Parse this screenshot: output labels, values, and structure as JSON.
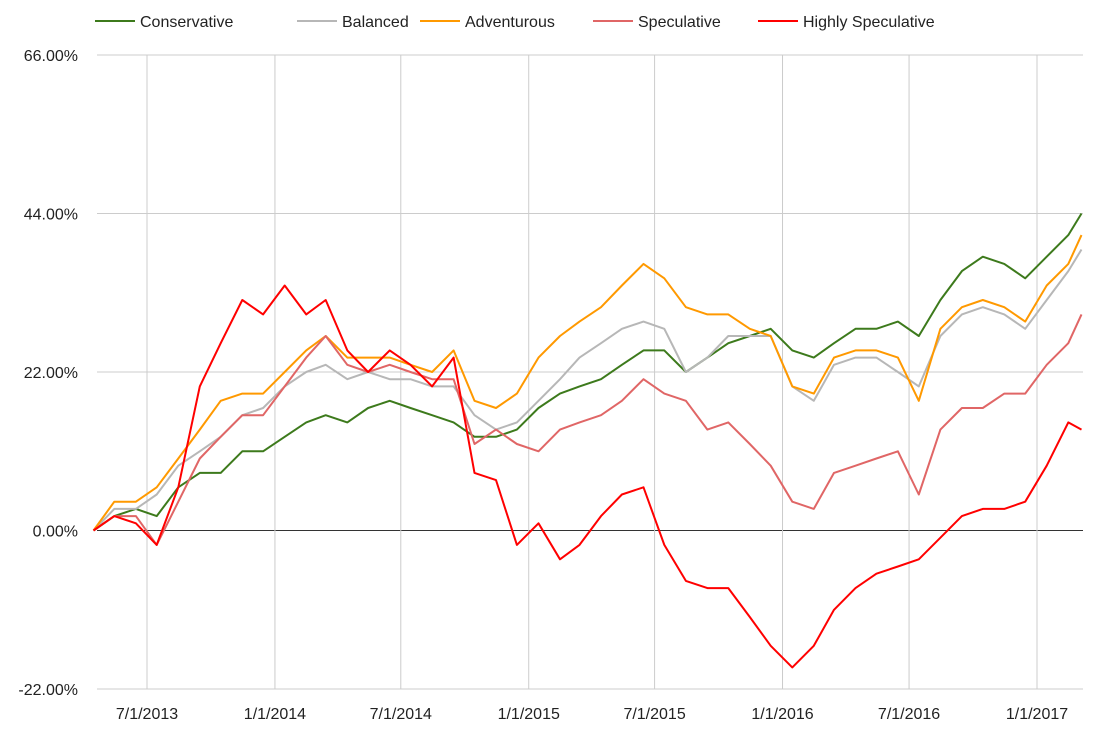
{
  "chart_data": {
    "type": "line",
    "title": "",
    "xlabel": "",
    "ylabel": "",
    "ylim": [
      -22,
      66
    ],
    "yticks": [
      "-22.00%",
      "0.00%",
      "22.00%",
      "44.00%",
      "66.00%"
    ],
    "ytick_values": [
      -22,
      0,
      22,
      44,
      66
    ],
    "xticks": [
      "7/1/2013",
      "1/1/2014",
      "7/1/2014",
      "1/1/2015",
      "7/1/2015",
      "1/1/2016",
      "7/1/2016",
      "1/1/2017"
    ],
    "xtick_dates": [
      "2013-07-01",
      "2014-01-01",
      "2014-07-01",
      "2015-01-01",
      "2015-07-01",
      "2016-01-01",
      "2016-07-01",
      "2017-01-01"
    ],
    "grid": true,
    "legend_position": "top",
    "x": [
      "2013-04-15",
      "2013-05-15",
      "2013-06-15",
      "2013-07-15",
      "2013-08-15",
      "2013-09-15",
      "2013-10-15",
      "2013-11-15",
      "2013-12-15",
      "2014-01-15",
      "2014-02-15",
      "2014-03-15",
      "2014-04-15",
      "2014-05-15",
      "2014-06-15",
      "2014-07-15",
      "2014-08-15",
      "2014-09-15",
      "2014-10-15",
      "2014-11-15",
      "2014-12-15",
      "2015-01-15",
      "2015-02-15",
      "2015-03-15",
      "2015-04-15",
      "2015-05-15",
      "2015-06-15",
      "2015-07-15",
      "2015-08-15",
      "2015-09-15",
      "2015-10-15",
      "2015-11-15",
      "2015-12-15",
      "2016-01-15",
      "2016-02-15",
      "2016-03-15",
      "2016-04-15",
      "2016-05-15",
      "2016-06-15",
      "2016-07-15",
      "2016-08-15",
      "2016-09-15",
      "2016-10-15",
      "2016-11-15",
      "2016-12-15",
      "2017-01-15",
      "2017-02-15",
      "2017-03-06"
    ],
    "series": [
      {
        "name": "Conservative",
        "color": "#3d7a1c",
        "values": [
          0,
          2,
          3,
          2,
          6,
          8,
          8,
          11,
          11,
          13,
          15,
          16,
          15,
          17,
          18,
          17,
          16,
          15,
          13,
          13,
          14,
          17,
          19,
          20,
          21,
          23,
          25,
          25,
          22,
          24,
          26,
          27,
          28,
          25,
          24,
          26,
          28,
          28,
          29,
          27,
          32,
          36,
          38,
          37,
          35,
          38,
          41,
          44
        ]
      },
      {
        "name": "Balanced",
        "color": "#b7b7b7",
        "values": [
          0,
          3,
          3,
          5,
          9,
          11,
          13,
          16,
          17,
          20,
          22,
          23,
          21,
          22,
          21,
          21,
          20,
          20,
          16,
          14,
          15,
          18,
          21,
          24,
          26,
          28,
          29,
          28,
          22,
          24,
          27,
          27,
          27,
          20,
          18,
          23,
          24,
          24,
          22,
          20,
          27,
          30,
          31,
          30,
          28,
          32,
          36,
          39
        ]
      },
      {
        "name": "Adventurous",
        "color": "#ff9900",
        "values": [
          0,
          4,
          4,
          6,
          10,
          14,
          18,
          19,
          19,
          22,
          25,
          27,
          24,
          24,
          24,
          23,
          22,
          25,
          18,
          17,
          19,
          24,
          27,
          29,
          31,
          34,
          37,
          35,
          31,
          30,
          30,
          28,
          27,
          20,
          19,
          24,
          25,
          25,
          24,
          18,
          28,
          31,
          32,
          31,
          29,
          34,
          37,
          41
        ]
      },
      {
        "name": "Speculative",
        "color": "#e06666",
        "values": [
          0,
          2,
          2,
          -2,
          4,
          10,
          13,
          16,
          16,
          20,
          24,
          27,
          23,
          22,
          23,
          22,
          21,
          21,
          12,
          14,
          12,
          11,
          14,
          15,
          16,
          18,
          21,
          19,
          18,
          14,
          15,
          12,
          9,
          4,
          3,
          8,
          9,
          10,
          11,
          5,
          14,
          17,
          17,
          19,
          19,
          23,
          26,
          30
        ]
      },
      {
        "name": "Highly Speculative",
        "color": "#ff0000",
        "values": [
          0,
          2,
          1,
          -2,
          6,
          20,
          26,
          32,
          30,
          34,
          30,
          32,
          25,
          22,
          25,
          23,
          20,
          24,
          8,
          7,
          -2,
          1,
          -4,
          -2,
          2,
          5,
          6,
          -2,
          -7,
          -8,
          -8,
          -12,
          -16,
          -19,
          -16,
          -11,
          -8,
          -6,
          -5,
          -4,
          -1,
          2,
          3,
          3,
          4,
          9,
          15,
          14
        ]
      }
    ]
  }
}
